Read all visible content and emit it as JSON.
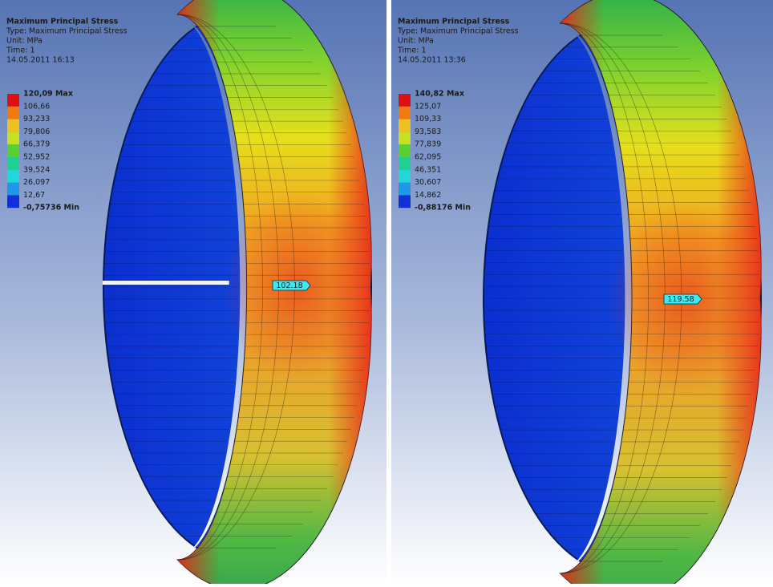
{
  "panels": [
    {
      "title": "Maximum Principal Stress",
      "type": "Type: Maximum Principal Stress",
      "unit": "Unit: MPa",
      "time": "Time: 1",
      "date": "14.05.2011 16:13",
      "legend": [
        "120,09 Max",
        "106,66",
        "93,233",
        "79,806",
        "66,379",
        "52,952",
        "39,524",
        "26,097",
        "12,67",
        "-0,75736 Min"
      ],
      "probe": "102.18"
    },
    {
      "title": "Maximum Principal Stress",
      "type": "Type: Maximum Principal Stress",
      "unit": "Unit: MPa",
      "time": "Time: 1",
      "date": "14.05.2011 13:36",
      "legend": [
        "140,82 Max",
        "125,07",
        "109,33",
        "93,583",
        "77,839",
        "62,095",
        "46,351",
        "30,607",
        "14,862",
        "-0,88176 Min"
      ],
      "probe": "119.58"
    }
  ]
}
